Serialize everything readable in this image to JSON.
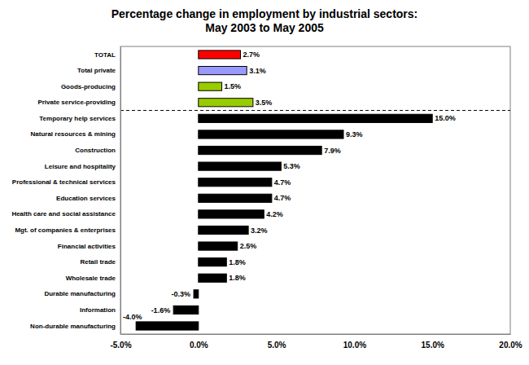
{
  "chart_data": {
    "type": "bar",
    "orientation": "horizontal",
    "title": "Percentage change in employment by industrial sectors:",
    "subtitle": "May 2003 to May 2005",
    "categories": [
      "TOTAL",
      "Total private",
      "Goods-producing",
      "Private service-providing",
      "Temporary help services",
      "Natural resources & mining",
      "Construction",
      "Leisure and hospitality",
      "Professional & technical services",
      "Education services",
      "Health care and social assistance",
      "Mgt. of companies & enterprises",
      "Financial activities",
      "Retail trade",
      "Wholesale trade",
      "Durable manufacturing",
      "Information",
      "Non-durable manufacturing"
    ],
    "values": [
      2.7,
      3.1,
      1.5,
      3.5,
      15.0,
      9.3,
      7.9,
      5.3,
      4.7,
      4.7,
      4.2,
      3.2,
      2.5,
      1.8,
      1.8,
      -0.3,
      -1.6,
      -4.0
    ],
    "value_labels": [
      "2.7%",
      "3.1%",
      "1.5%",
      "3.5%",
      "15.0%",
      "9.3%",
      "7.9%",
      "5.3%",
      "4.7%",
      "4.7%",
      "4.2%",
      "3.2%",
      "2.5%",
      "1.8%",
      "1.8%",
      "-0.3%",
      "-1.6%",
      "-4.0%"
    ],
    "colors": [
      "#ff0000",
      "#9999ff",
      "#99cc00",
      "#99cc00",
      "#000000",
      "#000000",
      "#000000",
      "#000000",
      "#000000",
      "#000000",
      "#000000",
      "#000000",
      "#000000",
      "#000000",
      "#000000",
      "#000000",
      "#000000",
      "#000000"
    ],
    "xlim": [
      -5,
      20
    ],
    "xticks": [
      {
        "value": -5,
        "label": "-5.0%"
      },
      {
        "value": 0,
        "label": "0.0%"
      },
      {
        "value": 5,
        "label": "5.0%"
      },
      {
        "value": 10,
        "label": "10.0%"
      },
      {
        "value": 15,
        "label": "15.0%"
      },
      {
        "value": 20,
        "label": "20.0%"
      }
    ],
    "grid": false,
    "data_labels": true
  }
}
